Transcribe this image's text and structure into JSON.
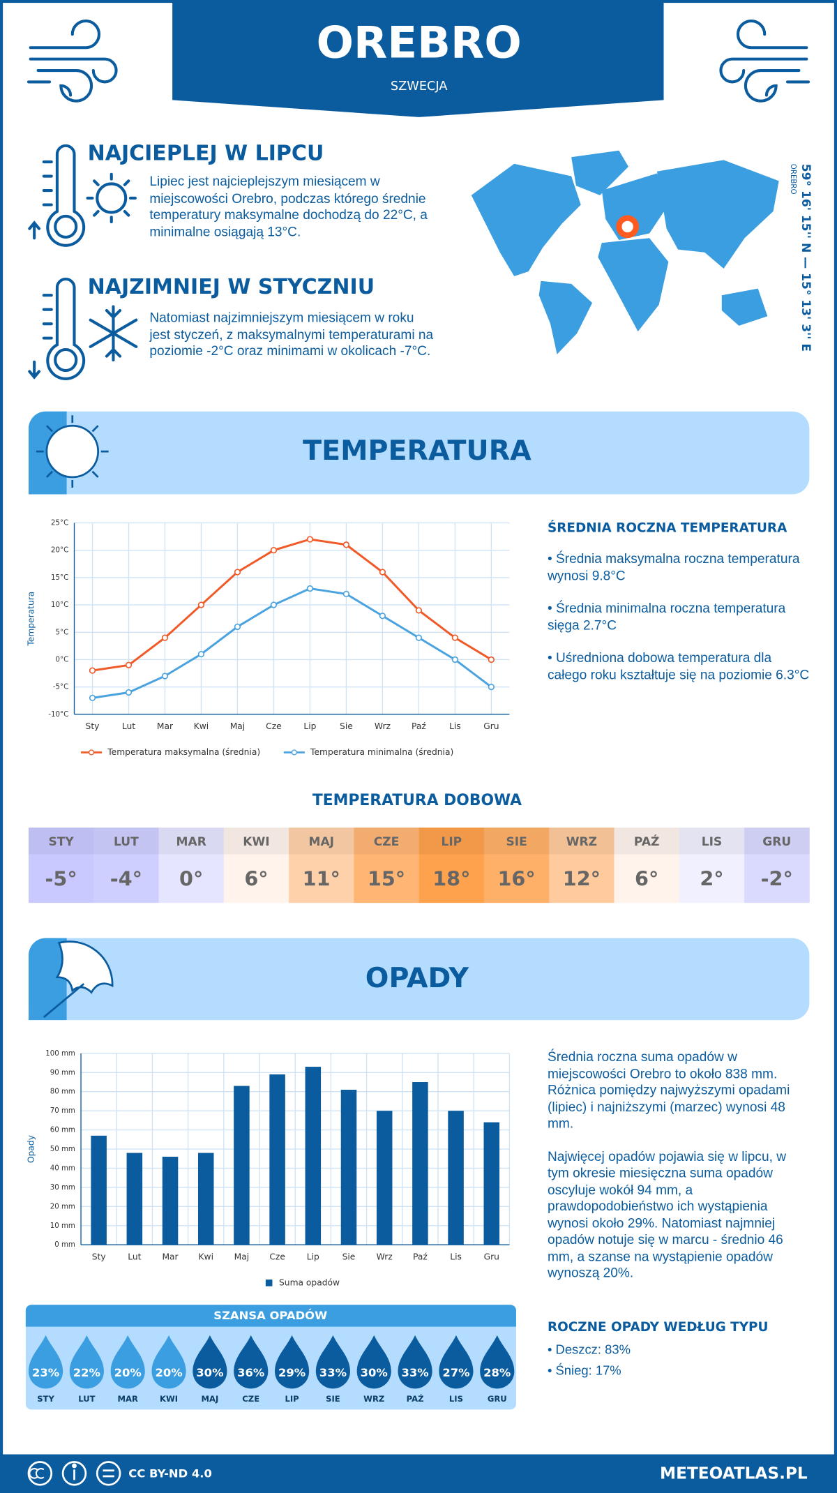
{
  "header": {
    "title": "OREBRO",
    "subtitle": "SZWECJA"
  },
  "warmest": {
    "title": "NAJCIEPLEJ W LIPCU",
    "text": "Lipiec jest najcieplejszym miesiącem w miejscowości Orebro, podczas którego średnie temperatury maksymalne dochodzą do 22°C, a minimalne osiągają 13°C."
  },
  "coldest": {
    "title": "NAJZIMNIEJ W STYCZNIU",
    "text": "Natomiast najzimniejszym miesiącem w roku jest styczeń, z maksymalnymi temperaturami na poziomie -2°C oraz minimami w okolicach -7°C."
  },
  "map": {
    "coordinates": "59° 16' 15'' N — 15° 13' 3'' E",
    "label": "OREBRO"
  },
  "temperature_section": {
    "title": "TEMPERATURA"
  },
  "chart_data": [
    {
      "type": "line",
      "y_label": "Temperatura",
      "categories": [
        "Sty",
        "Lut",
        "Mar",
        "Kwi",
        "Maj",
        "Cze",
        "Lip",
        "Sie",
        "Wrz",
        "Paź",
        "Lis",
        "Gru"
      ],
      "series": [
        {
          "name": "Temperatura maksymalna (średnia)",
          "color": "#f05a28",
          "values": [
            -2,
            -1,
            4,
            10,
            16,
            20,
            22,
            21,
            16,
            9,
            4,
            0
          ]
        },
        {
          "name": "Temperatura minimalna (średnia)",
          "color": "#4aa3df",
          "values": [
            -7,
            -6,
            -3,
            1,
            6,
            10,
            13,
            12,
            8,
            4,
            0,
            -5
          ]
        }
      ],
      "ylim": [
        -10,
        25
      ],
      "yticks": [
        {
          "value": -10,
          "label": "-10°C"
        },
        {
          "value": -5,
          "label": "-5°C"
        },
        {
          "value": 0,
          "label": "0°C"
        },
        {
          "value": 5,
          "label": "5°C"
        },
        {
          "value": 10,
          "label": "10°C"
        },
        {
          "value": 15,
          "label": "15°C"
        },
        {
          "value": 20,
          "label": "20°C"
        },
        {
          "value": 25,
          "label": "25°C"
        }
      ],
      "grid": true
    },
    {
      "type": "bar",
      "y_label": "Opady",
      "categories": [
        "Sty",
        "Lut",
        "Mar",
        "Kwi",
        "Maj",
        "Cze",
        "Lip",
        "Sie",
        "Wrz",
        "Paź",
        "Lis",
        "Gru"
      ],
      "series": [
        {
          "name": "Suma opadów",
          "color": "#0b5c9e",
          "values": [
            57,
            48,
            46,
            48,
            83,
            89,
            93,
            81,
            70,
            85,
            70,
            64
          ]
        }
      ],
      "ylim": [
        0,
        100
      ],
      "yticks": [
        {
          "value": 0,
          "label": "0 mm"
        },
        {
          "value": 10,
          "label": "10 mm"
        },
        {
          "value": 20,
          "label": "20 mm"
        },
        {
          "value": 30,
          "label": "30 mm"
        },
        {
          "value": 40,
          "label": "40 mm"
        },
        {
          "value": 50,
          "label": "50 mm"
        },
        {
          "value": 60,
          "label": "60 mm"
        },
        {
          "value": 70,
          "label": "70 mm"
        },
        {
          "value": 80,
          "label": "80 mm"
        },
        {
          "value": 90,
          "label": "90 mm"
        },
        {
          "value": 100,
          "label": "100 mm"
        }
      ],
      "grid": true
    }
  ],
  "temperature_stats": {
    "title": "ŚREDNIA ROCZNA TEMPERATURA",
    "items": [
      "• Średnia maksymalna roczna temperatura wynosi 9.8°C",
      "• Średnia minimalna roczna temperatura sięga 2.7°C",
      "• Uśredniona dobowa temperatura dla całego roku kształtuje się na poziomie 6.3°C"
    ]
  },
  "daily_temperature": {
    "title": "TEMPERATURA DOBOWA",
    "months": [
      "STY",
      "LUT",
      "MAR",
      "KWI",
      "MAJ",
      "CZE",
      "LIP",
      "SIE",
      "WRZ",
      "PAŹ",
      "LIS",
      "GRU"
    ],
    "values": [
      -5,
      -4,
      0,
      6,
      11,
      15,
      18,
      16,
      12,
      6,
      2,
      -2
    ],
    "value_labels": [
      "-5°",
      "-4°",
      "0°",
      "6°",
      "11°",
      "15°",
      "18°",
      "16°",
      "12°",
      "6°",
      "2°",
      "-2°"
    ]
  },
  "precipitation_section": {
    "title": "OPADY"
  },
  "precipitation_text": [
    "Średnia roczna suma opadów w miejscowości Orebro to około 838 mm. Różnica pomiędzy najwyższymi opadami (lipiec) i najniższymi (marzec) wynosi 48 mm.",
    "Najwięcej opadów pojawia się w lipcu, w tym okresie miesięczna suma opadów oscyluje wokół 94 mm, a prawdopodobieństwo ich wystąpienia wynosi około 29%. Natomiast najmniej opadów notuje się w marcu - średnio 46 mm, a szanse na wystąpienie opadów wynoszą 20%."
  ],
  "precipitation_chance": {
    "title": "SZANSA OPADÓW",
    "months": [
      "STY",
      "LUT",
      "MAR",
      "KWI",
      "MAJ",
      "CZE",
      "LIP",
      "SIE",
      "WRZ",
      "PAŹ",
      "LIS",
      "GRU"
    ],
    "values": [
      23,
      22,
      20,
      20,
      30,
      36,
      29,
      33,
      30,
      33,
      27,
      28
    ],
    "value_labels": [
      "23%",
      "22%",
      "20%",
      "20%",
      "30%",
      "36%",
      "29%",
      "33%",
      "30%",
      "33%",
      "27%",
      "28%"
    ]
  },
  "precipitation_types": {
    "title": "ROCZNE OPADY WEDŁUG TYPU",
    "items": [
      "• Deszcz: 83%",
      "• Śnieg: 17%"
    ]
  },
  "footer": {
    "license": "CC BY-ND 4.0",
    "site": "METEOATLAS.PL"
  }
}
